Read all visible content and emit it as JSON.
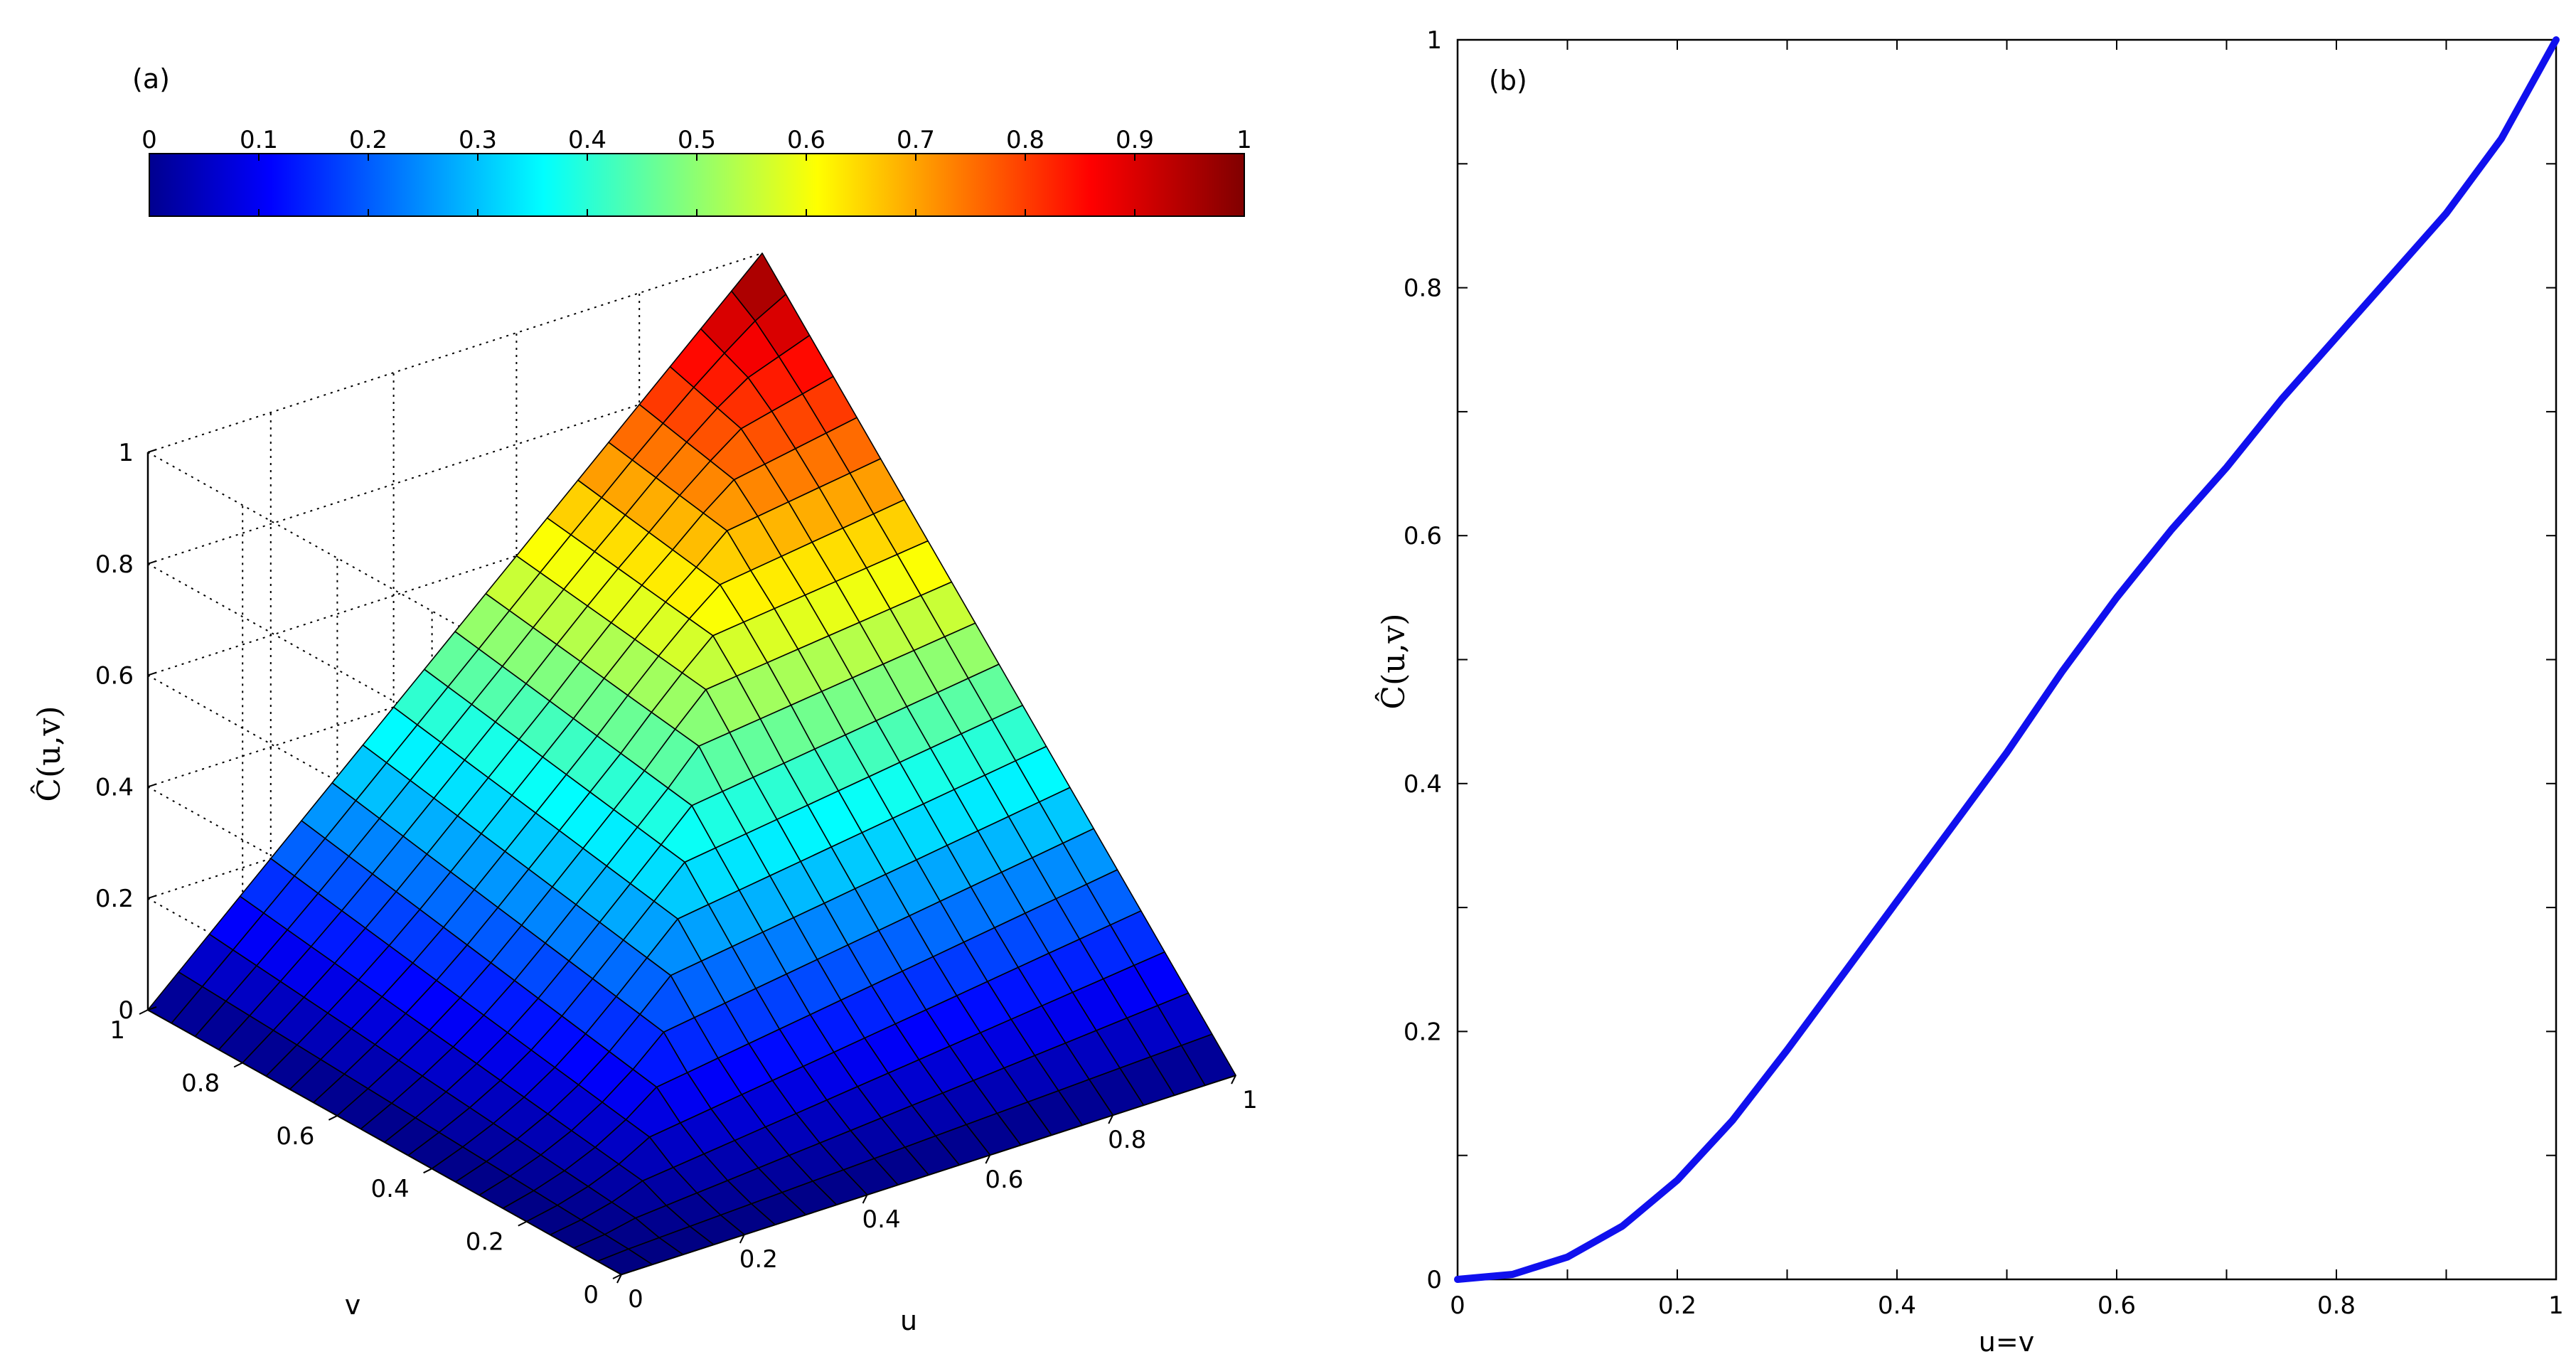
{
  "figure": {
    "panel_a_label": "(a)",
    "panel_b_label": "(b)"
  },
  "chart_data": [
    {
      "type": "surface",
      "panel": "(a)",
      "xlabel": "u",
      "ylabel": "v",
      "zlabel": "Ĉ(u,v)",
      "xlim": [
        0,
        1
      ],
      "ylim": [
        0,
        1
      ],
      "zlim": [
        0,
        1
      ],
      "x_ticks": [
        "0",
        "0.2",
        "0.4",
        "0.6",
        "0.8",
        "1"
      ],
      "y_ticks": [
        "0",
        "0.2",
        "0.4",
        "0.6",
        "0.8",
        "1"
      ],
      "z_ticks": [
        "0",
        "0.2",
        "0.4",
        "0.6",
        "0.8",
        "1"
      ],
      "grid": true,
      "colormap": "jet",
      "colorbar": {
        "placement": "top",
        "range": [
          0,
          1
        ],
        "ticks": [
          "0",
          "0.1",
          "0.2",
          "0.3",
          "0.4",
          "0.5",
          "0.6",
          "0.7",
          "0.8",
          "0.9",
          "1"
        ]
      },
      "grid_resolution": 21,
      "diagonal_values": {
        "x": [
          0,
          0.05,
          0.1,
          0.15,
          0.2,
          0.25,
          0.3,
          0.35,
          0.4,
          0.45,
          0.5,
          0.55,
          0.6,
          0.65,
          0.7,
          0.75,
          0.8,
          0.85,
          0.9,
          0.95,
          1.0
        ],
        "y": [
          0,
          0.004,
          0.018,
          0.043,
          0.08,
          0.128,
          0.185,
          0.245,
          0.305,
          0.365,
          0.425,
          0.49,
          0.55,
          0.605,
          0.655,
          0.71,
          0.76,
          0.81,
          0.86,
          0.92,
          1.0
        ]
      }
    },
    {
      "type": "line",
      "panel": "(b)",
      "xlabel": "u=v",
      "ylabel": "Ĉ(u,v)",
      "xlim": [
        0,
        1
      ],
      "ylim": [
        0,
        1
      ],
      "x_ticks": [
        "0",
        "0.2",
        "0.4",
        "0.6",
        "0.8",
        "1"
      ],
      "y_ticks": [
        "0",
        "0.2",
        "0.4",
        "0.6",
        "0.8",
        "1"
      ],
      "grid": false,
      "series": [
        {
          "color": "#1010ee",
          "x": [
            0,
            0.05,
            0.1,
            0.15,
            0.2,
            0.25,
            0.3,
            0.35,
            0.4,
            0.45,
            0.5,
            0.55,
            0.6,
            0.65,
            0.7,
            0.75,
            0.8,
            0.85,
            0.9,
            0.95,
            1.0
          ],
          "y": [
            0,
            0.004,
            0.018,
            0.043,
            0.08,
            0.128,
            0.185,
            0.245,
            0.305,
            0.365,
            0.425,
            0.49,
            0.55,
            0.605,
            0.655,
            0.71,
            0.76,
            0.81,
            0.86,
            0.92,
            1.0
          ]
        }
      ]
    }
  ]
}
